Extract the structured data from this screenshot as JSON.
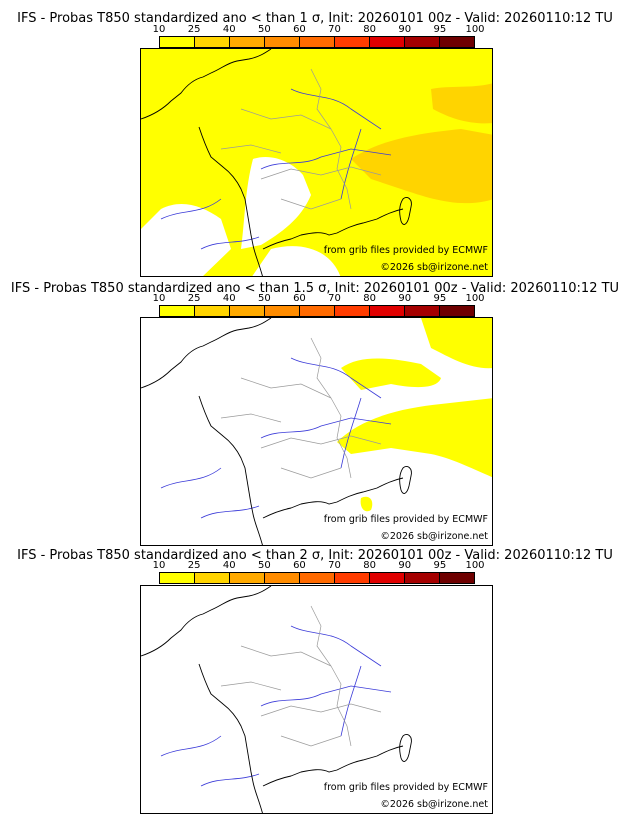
{
  "colorbar": {
    "ticks": [
      "10",
      "25",
      "40",
      "50",
      "60",
      "70",
      "80",
      "90",
      "95",
      "100"
    ],
    "colors": [
      "#ffff00",
      "#ffd400",
      "#ffaa00",
      "#ff8c00",
      "#ff6a00",
      "#ff3c00",
      "#e00000",
      "#a50000",
      "#6e0000"
    ]
  },
  "panels": [
    {
      "title": "IFS - Probas T850  standardized ano < than 1 σ, Init: 20260101 00z - Valid: 20260110:12 TU",
      "credit": "from grib files provided by ECMWF",
      "copyright": "©2026 sb@irizone.net",
      "coverage": "widespread"
    },
    {
      "title": "IFS - Probas T850  standardized ano < than 1.5 σ, Init: 20260101 00z - Valid: 20260110:12 TU",
      "credit": "from grib files provided by ECMWF",
      "copyright": "©2026 sb@irizone.net",
      "coverage": "east"
    },
    {
      "title": "IFS - Probas T850  standardized ano < than 2 σ, Init: 20260101 00z - Valid: 20260110:12 TU",
      "credit": "from grib files provided by ECMWF",
      "copyright": "©2026 sb@irizone.net",
      "coverage": "none"
    }
  ]
}
